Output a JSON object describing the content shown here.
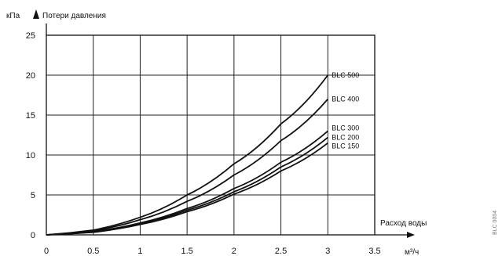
{
  "chart_data": {
    "type": "line",
    "yunit": "кПа",
    "ylabel": "Потери давления",
    "xlabel": "Расход воды",
    "xunit": "м³/ч",
    "xlim": [
      0,
      3.5
    ],
    "ylim": [
      0,
      25
    ],
    "xticks": [
      "0",
      "0.5",
      "1",
      "1.5",
      "2",
      "2.5",
      "3",
      "3.5"
    ],
    "yticks": [
      "0",
      "5",
      "10",
      "15",
      "20",
      "25"
    ],
    "grid": true,
    "series": [
      {
        "name": "BLC 500",
        "x": [
          0,
          0.5,
          1,
          1.5,
          2,
          2.5,
          3
        ],
        "y": [
          0,
          0.6,
          2.2,
          5.0,
          8.9,
          13.9,
          20.0
        ]
      },
      {
        "name": "BLC 400",
        "x": [
          0,
          0.5,
          1,
          1.5,
          2,
          2.5,
          3
        ],
        "y": [
          0,
          0.5,
          1.9,
          4.2,
          7.5,
          11.8,
          17.0
        ]
      },
      {
        "name": "BLC 300",
        "x": [
          0,
          0.5,
          1,
          1.5,
          2,
          2.5,
          3
        ],
        "y": [
          0,
          0.4,
          1.5,
          3.3,
          5.8,
          9.1,
          13.0
        ]
      },
      {
        "name": "BLC 200",
        "x": [
          0,
          0.5,
          1,
          1.5,
          2,
          2.5,
          3
        ],
        "y": [
          0,
          0.35,
          1.4,
          3.1,
          5.4,
          8.5,
          12.2
        ]
      },
      {
        "name": "BLC 150",
        "x": [
          0,
          0.5,
          1,
          1.5,
          2,
          2.5,
          3
        ],
        "y": [
          0,
          0.32,
          1.3,
          2.9,
          5.1,
          8.0,
          11.5
        ]
      }
    ],
    "figure_code": "BLC 0004"
  }
}
